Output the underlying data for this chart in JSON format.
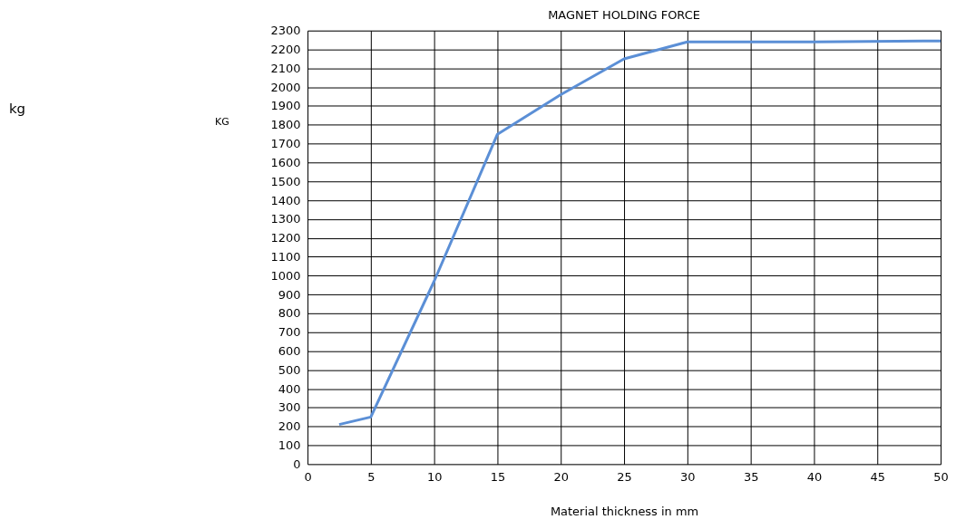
{
  "chart_data": {
    "type": "line",
    "title": "MAGNET    HOLDING    FORCE",
    "xlabel": "Material    thickness    in    mm",
    "ylabel": "KG",
    "annotations": [
      "kg"
    ],
    "x": [
      2.5,
      5,
      10,
      15,
      20,
      25,
      30,
      40,
      50
    ],
    "series": [
      {
        "color": "#5b8fd6",
        "values": [
          210,
          250,
          970,
          1750,
          1960,
          2150,
          2240,
          2240,
          2245
        ]
      }
    ],
    "xlim": [
      0,
      50
    ],
    "xticks": [
      0,
      5,
      10,
      15,
      20,
      25,
      30,
      35,
      40,
      45,
      50
    ],
    "ylim": [
      0,
      2300
    ],
    "yticks": [
      0,
      100,
      200,
      300,
      400,
      500,
      600,
      700,
      800,
      900,
      1000,
      1100,
      1200,
      1300,
      1400,
      1500,
      1600,
      1700,
      1800,
      1900,
      2000,
      2100,
      2200,
      2300
    ],
    "grid": true,
    "marker": "none",
    "line_style": "solid"
  }
}
